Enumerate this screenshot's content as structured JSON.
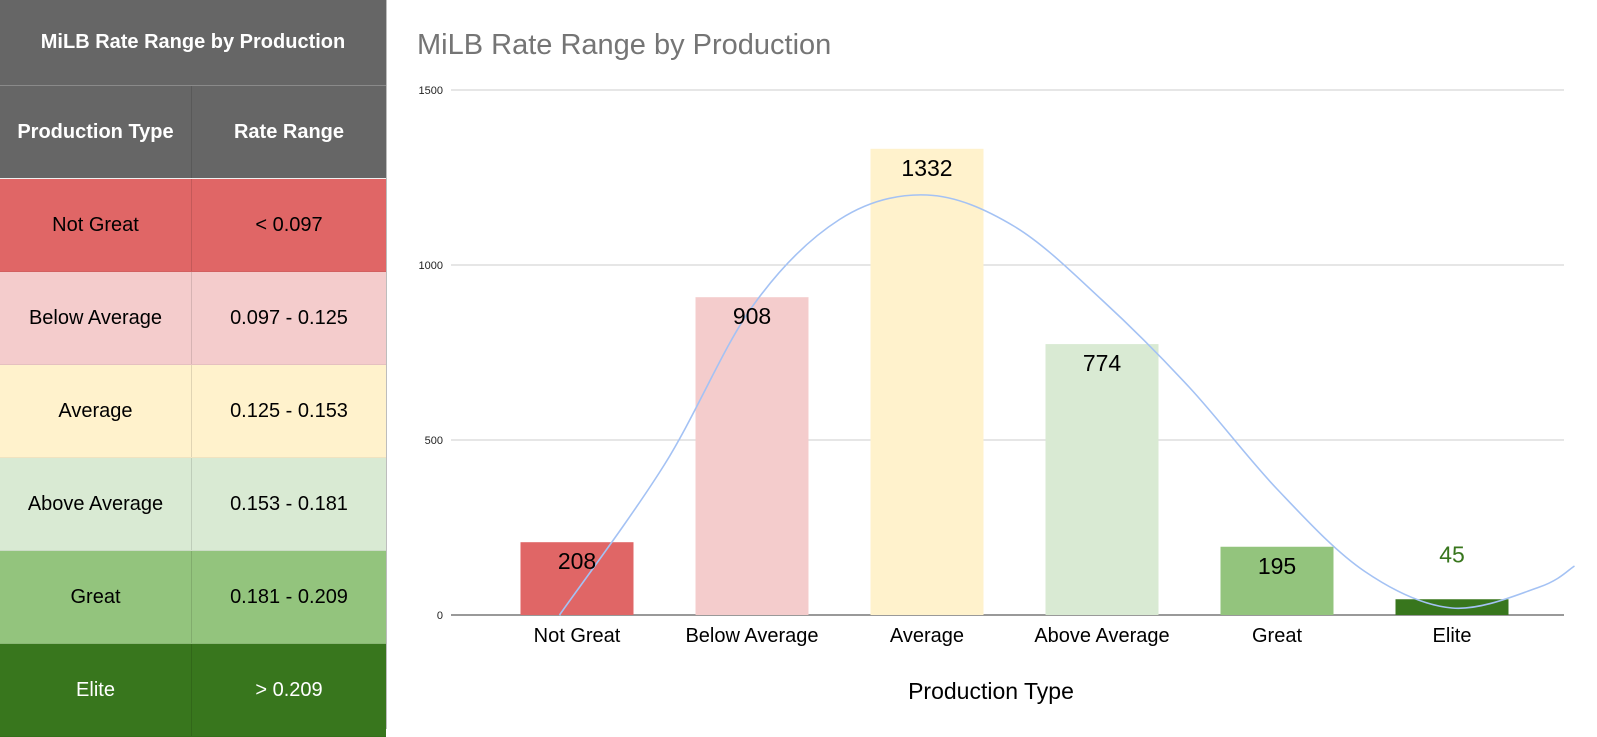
{
  "table": {
    "title": "MiLB Rate Range by Production",
    "headers": [
      "Production Type",
      "Rate Range"
    ],
    "rows": [
      {
        "type": "Not Great",
        "range": "< 0.097",
        "bg": "#e06666",
        "fg": "#000000"
      },
      {
        "type": "Below Average",
        "range": "0.097 - 0.125",
        "bg": "#f4cccc",
        "fg": "#000000"
      },
      {
        "type": "Average",
        "range": "0.125 - 0.153",
        "bg": "#fff2cc",
        "fg": "#000000"
      },
      {
        "type": "Above Average",
        "range": "0.153 - 0.181",
        "bg": "#d9ead3",
        "fg": "#000000"
      },
      {
        "type": "Great",
        "range": "0.181 - 0.209",
        "bg": "#93c47d",
        "fg": "#000000"
      },
      {
        "type": "Elite",
        "range": "> 0.209",
        "bg": "#38761d",
        "fg": "#ffffff"
      }
    ]
  },
  "chart_data": {
    "type": "bar",
    "title": "MiLB Rate Range by Production",
    "xlabel": "Production Type",
    "ylabel": "",
    "categories": [
      "Not Great",
      "Below Average",
      "Average",
      "Above Average",
      "Great",
      "Elite"
    ],
    "values": [
      208,
      908,
      1332,
      774,
      195,
      45
    ],
    "bar_colors": [
      "#e06666",
      "#f4cccc",
      "#fff2cc",
      "#d9ead3",
      "#93c47d",
      "#38761d"
    ],
    "label_colors": [
      "#000000",
      "#000000",
      "#000000",
      "#000000",
      "#000000",
      "#38761d"
    ],
    "ylim": [
      0,
      1500
    ],
    "yticks": [
      0,
      500,
      1000,
      1500
    ],
    "grid": true,
    "trendline": {
      "type": "polynomial",
      "color": "#a4c2f4",
      "points": [
        [
          -0.1,
          0
        ],
        [
          0.5,
          430
        ],
        [
          1.0,
          880
        ],
        [
          1.5,
          1130
        ],
        [
          2.0,
          1200
        ],
        [
          2.5,
          1110
        ],
        [
          3.0,
          900
        ],
        [
          3.5,
          650
        ],
        [
          4.0,
          360
        ],
        [
          4.5,
          125
        ],
        [
          5.0,
          20
        ],
        [
          5.5,
          80
        ],
        [
          5.7,
          140
        ]
      ]
    }
  }
}
